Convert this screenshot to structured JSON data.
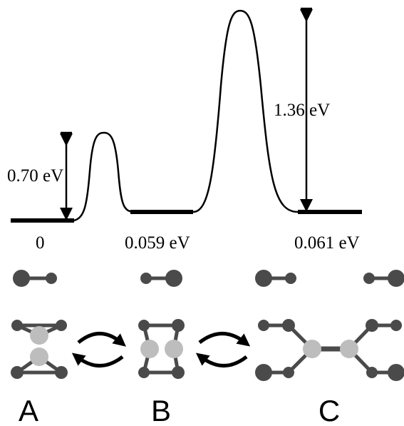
{
  "barriers": [
    "0.70 eV",
    "1.36 eV"
  ],
  "levels": [
    "0",
    "0.059 eV",
    "0.061 eV"
  ],
  "states": [
    "A",
    "B",
    "C"
  ]
}
